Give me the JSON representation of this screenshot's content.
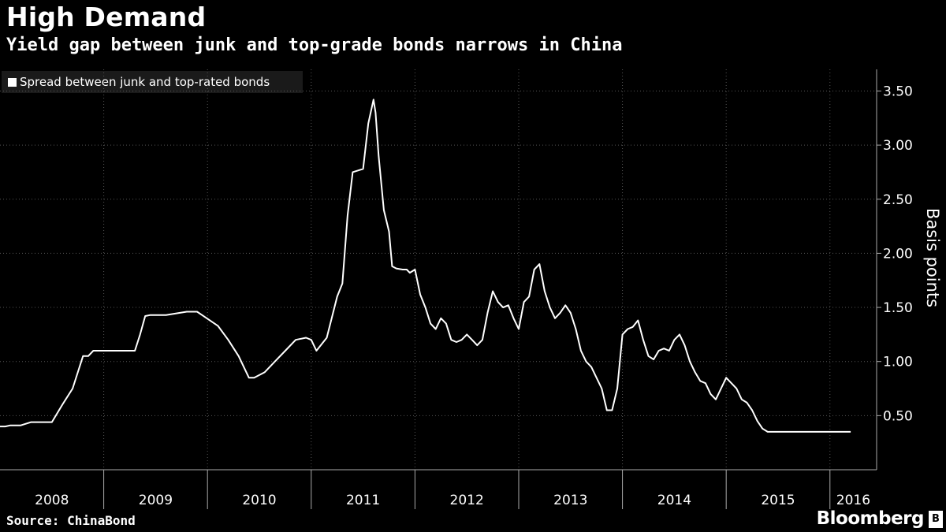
{
  "chart_data": {
    "type": "line",
    "title": "High Demand",
    "subtitle": "Yield gap between junk and top-grade bonds narrows in China",
    "ylabel": "Basis points",
    "xlabel": "",
    "ylim": [
      0.0,
      3.7
    ],
    "yticks": [
      "0.50",
      "1.00",
      "1.50",
      "2.00",
      "2.50",
      "3.00",
      "3.50"
    ],
    "ytick_values": [
      0.5,
      1.0,
      1.5,
      2.0,
      2.5,
      3.0,
      3.5
    ],
    "x_categories": [
      "2008",
      "2009",
      "2010",
      "2011",
      "2012",
      "2013",
      "2014",
      "2015",
      "2016"
    ],
    "grid": true,
    "legend_position": "top-left",
    "series": [
      {
        "name": "Spread between junk and top-rated bonds",
        "x": [
          2008.0,
          2008.05,
          2008.1,
          2008.2,
          2008.3,
          2008.4,
          2008.5,
          2008.55,
          2008.6,
          2008.7,
          2008.8,
          2008.85,
          2008.9,
          2008.95,
          2009.0,
          2009.1,
          2009.2,
          2009.3,
          2009.35,
          2009.4,
          2009.45,
          2009.6,
          2009.8,
          2009.9,
          2010.1,
          2010.2,
          2010.3,
          2010.4,
          2010.45,
          2010.55,
          2010.65,
          2010.75,
          2010.85,
          2010.95,
          2011.0,
          2011.05,
          2011.15,
          2011.25,
          2011.3,
          2011.35,
          2011.4,
          2011.5,
          2011.55,
          2011.6,
          2011.62,
          2011.65,
          2011.7,
          2011.75,
          2011.78,
          2011.82,
          2011.88,
          2011.92,
          2011.95,
          2012.0,
          2012.05,
          2012.1,
          2012.15,
          2012.2,
          2012.25,
          2012.3,
          2012.35,
          2012.4,
          2012.45,
          2012.5,
          2012.55,
          2012.6,
          2012.65,
          2012.7,
          2012.75,
          2012.8,
          2012.85,
          2012.9,
          2012.95,
          2013.0,
          2013.05,
          2013.1,
          2013.15,
          2013.2,
          2013.25,
          2013.3,
          2013.35,
          2013.4,
          2013.45,
          2013.5,
          2013.55,
          2013.6,
          2013.65,
          2013.7,
          2013.75,
          2013.8,
          2013.85,
          2013.9,
          2013.95,
          2014.0,
          2014.05,
          2014.1,
          2014.15,
          2014.2,
          2014.25,
          2014.3,
          2014.35,
          2014.4,
          2014.45,
          2014.5,
          2014.55,
          2014.6,
          2014.65,
          2014.7,
          2014.75,
          2014.8,
          2014.85,
          2014.9,
          2014.95,
          2015.0,
          2015.05,
          2015.1,
          2015.15,
          2015.2,
          2015.25,
          2015.3,
          2015.35,
          2015.4,
          2015.45,
          2015.5,
          2015.55,
          2015.6,
          2015.65,
          2015.7,
          2015.75,
          2015.8,
          2015.85,
          2015.9,
          2015.95,
          2016.0,
          2016.05,
          2016.1,
          2016.15,
          2016.2
        ],
        "values": [
          0.4,
          0.4,
          0.41,
          0.41,
          0.44,
          0.44,
          0.44,
          0.52,
          0.6,
          0.75,
          1.05,
          1.05,
          1.1,
          1.1,
          1.1,
          1.1,
          1.1,
          1.1,
          1.25,
          1.42,
          1.43,
          1.43,
          1.46,
          1.46,
          1.33,
          1.2,
          1.05,
          0.85,
          0.85,
          0.9,
          1.0,
          1.1,
          1.2,
          1.22,
          1.2,
          1.1,
          1.22,
          1.6,
          1.72,
          2.35,
          2.75,
          2.78,
          3.2,
          3.42,
          3.3,
          2.9,
          2.4,
          2.2,
          1.88,
          1.86,
          1.85,
          1.85,
          1.82,
          1.85,
          1.62,
          1.5,
          1.35,
          1.3,
          1.4,
          1.35,
          1.2,
          1.18,
          1.2,
          1.25,
          1.2,
          1.15,
          1.2,
          1.45,
          1.65,
          1.55,
          1.5,
          1.52,
          1.4,
          1.3,
          1.55,
          1.6,
          1.85,
          1.9,
          1.65,
          1.5,
          1.4,
          1.45,
          1.52,
          1.45,
          1.3,
          1.1,
          1.0,
          0.95,
          0.85,
          0.75,
          0.55,
          0.55,
          0.75,
          1.25,
          1.3,
          1.32,
          1.38,
          1.2,
          1.05,
          1.02,
          1.1,
          1.12,
          1.1,
          1.2,
          1.25,
          1.15,
          1.0,
          0.9,
          0.82,
          0.8,
          0.7,
          0.65,
          0.75,
          0.85,
          0.8,
          0.75,
          0.65,
          0.62,
          0.55,
          0.45,
          0.38,
          0.35,
          0.35,
          0.35,
          0.35,
          0.35,
          0.35,
          0.35,
          0.35,
          0.35,
          0.35,
          0.35,
          0.35,
          0.35,
          0.35,
          0.35,
          0.35,
          0.35
        ]
      }
    ]
  },
  "legend": {
    "label": "Spread between junk and top-rated bonds"
  },
  "source": "Source: ChinaBond",
  "brand": "Bloomberg",
  "brand_icon": "bloomberg-logo-icon"
}
